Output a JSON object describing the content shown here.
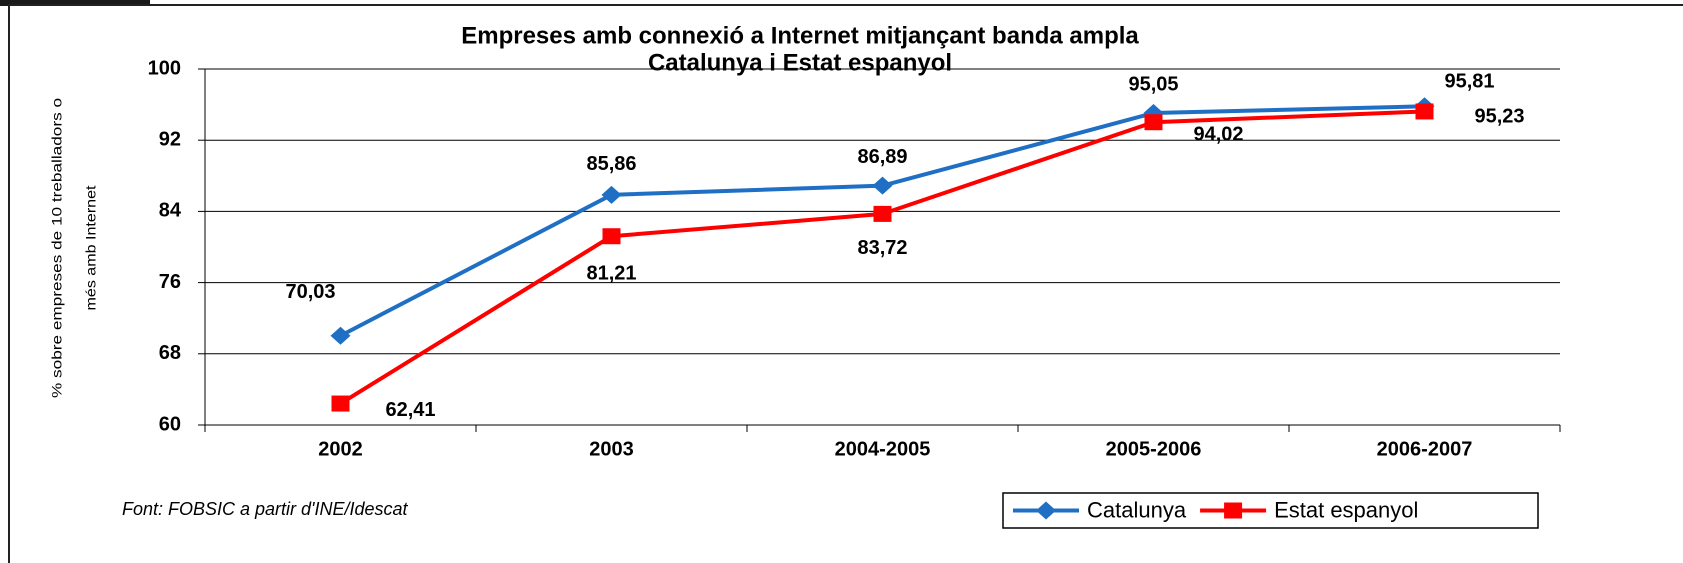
{
  "chart_data": {
    "type": "line",
    "title": "Empreses amb connexió a Internet mitjançant banda ampla",
    "subtitle": "Catalunya i Estat espanyol",
    "ylabel": [
      "% sobre empreses de 10 treballadors o",
      "més amb Internet"
    ],
    "source": "Font: FOBSIC a partir d'INE/Idescat",
    "categories": [
      "2002",
      "2003",
      "2004-2005",
      "2005-2006",
      "2006-2007"
    ],
    "series": [
      {
        "name": "Catalunya",
        "color": "#1f6fc5",
        "marker": "diamond",
        "values": [
          70.03,
          85.86,
          86.89,
          95.05,
          95.81
        ],
        "value_labels": [
          "70,03",
          "85,86",
          "86,89",
          "95,05",
          "95,81"
        ]
      },
      {
        "name": "Estat espanyol",
        "color": "#ff0000",
        "marker": "square",
        "values": [
          62.41,
          81.21,
          83.72,
          94.02,
          95.23
        ],
        "value_labels": [
          "62,41",
          "81,21",
          "83,72",
          "94,02",
          "95,23"
        ]
      }
    ],
    "ylim": [
      60,
      100
    ],
    "yticks": [
      60,
      68,
      76,
      84,
      92,
      100
    ],
    "grid": true,
    "legend": "lower right"
  }
}
